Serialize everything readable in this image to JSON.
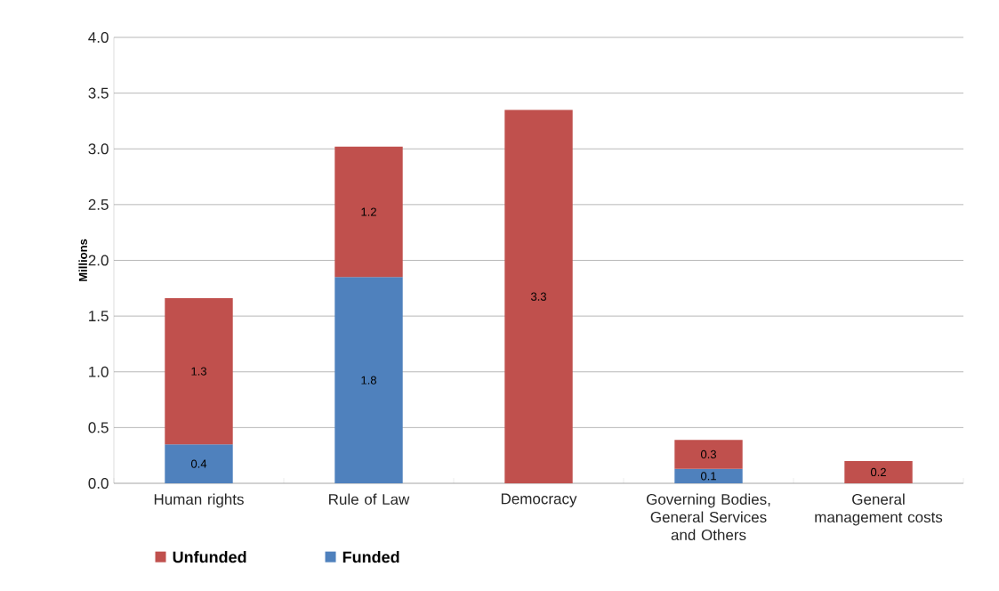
{
  "chart_data": {
    "type": "bar",
    "stacked": true,
    "ylabel": "Millions",
    "categories": [
      "Human rights",
      "Rule of Law",
      "Democracy",
      "Governing Bodies, General Services and Others",
      "General management costs"
    ],
    "series": [
      {
        "name": "Funded",
        "color": "#4f81bd",
        "values": [
          0.35,
          1.85,
          null,
          0.13,
          null
        ],
        "value_labels": [
          "0.4",
          "1.8",
          null,
          "0.1",
          null
        ]
      },
      {
        "name": "Unfunded",
        "color": "#c0504d",
        "values": [
          1.31,
          1.17,
          3.35,
          0.26,
          0.2
        ],
        "value_labels": [
          "1.3",
          "1.2",
          "3.3",
          "0.3",
          "0.2"
        ]
      }
    ],
    "ylim": [
      0,
      4
    ],
    "yticks": [
      {
        "value": 0,
        "label": "0.0"
      },
      {
        "value": 0.5,
        "label": "0.5"
      },
      {
        "value": 1,
        "label": "1.0"
      },
      {
        "value": 1.5,
        "label": "1.5"
      },
      {
        "value": 2,
        "label": "2.0"
      },
      {
        "value": 2.5,
        "label": "2.5"
      },
      {
        "value": 3,
        "label": "3.0"
      },
      {
        "value": 3.5,
        "label": "3.5"
      },
      {
        "value": 4,
        "label": "4.0"
      }
    ],
    "grid": "y",
    "legend": "bottom"
  }
}
